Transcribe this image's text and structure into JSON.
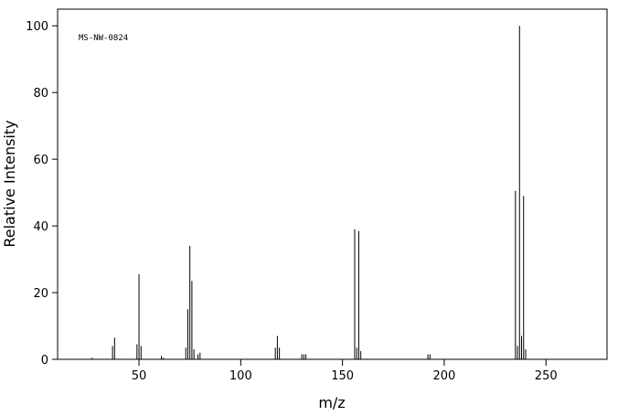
{
  "chart_data": {
    "type": "stick",
    "annotation": "MS-NW-0824",
    "xlabel": "m/z",
    "ylabel": "Relative Intensity",
    "x": [
      27,
      37,
      38,
      49,
      50,
      51,
      61,
      62,
      73,
      74,
      75,
      76,
      77,
      79,
      80,
      117,
      118,
      119,
      130,
      131,
      132,
      156,
      157,
      158,
      159,
      192,
      193,
      235,
      236,
      237,
      238,
      239,
      240
    ],
    "values": [
      0.5,
      4,
      6.5,
      4.5,
      25.5,
      4,
      1,
      0.5,
      3.5,
      15,
      34,
      23.5,
      3,
      1.5,
      2,
      3.5,
      7,
      3.5,
      1.5,
      1.5,
      1.5,
      39,
      3.5,
      38.5,
      2.5,
      1.5,
      1.5,
      50.5,
      4,
      100,
      7,
      49,
      3
    ],
    "color": "#000000",
    "xlim": [
      10,
      280
    ],
    "xticks": [
      50,
      100,
      150,
      200,
      250
    ],
    "ylim": [
      0,
      105
    ],
    "yticks": [
      0,
      20,
      40,
      60,
      80,
      100
    ]
  }
}
